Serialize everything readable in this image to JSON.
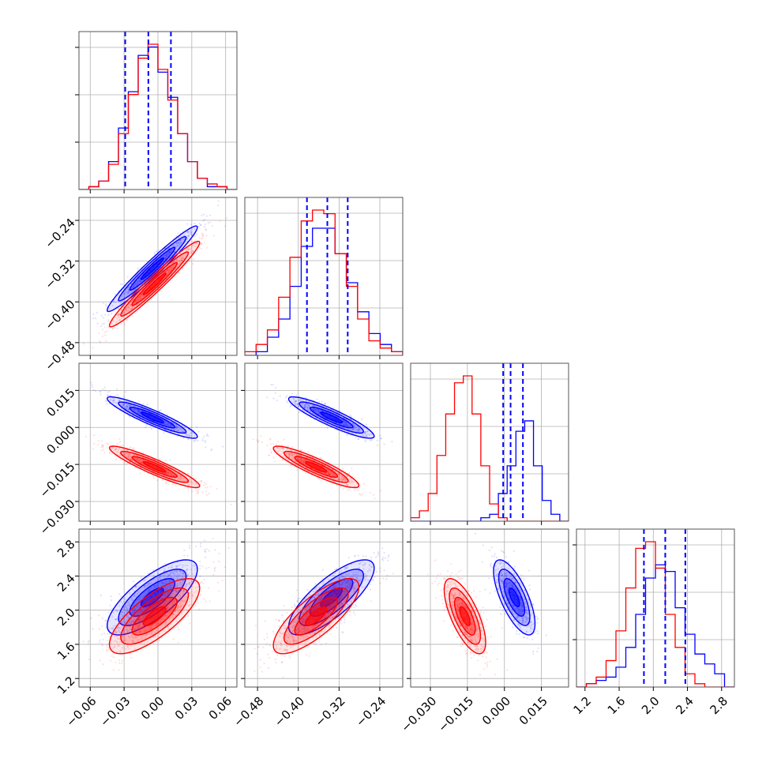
{
  "colors": {
    "model_a": "#0000ff",
    "model_b": "#ff0000"
  },
  "chart_data": {
    "type": "corner",
    "parameters": [
      {
        "index": 0,
        "range": [
          -0.07,
          0.07
        ],
        "ticks": [
          "−0.06",
          "−0.03",
          "0.00",
          "0.03",
          "0.06"
        ],
        "tick_values": [
          -0.06,
          -0.03,
          0.0,
          0.03,
          0.06
        ]
      },
      {
        "index": 1,
        "range": [
          -0.505,
          -0.195
        ],
        "ticks": [
          "−0.48",
          "−0.40",
          "−0.32",
          "−0.24"
        ],
        "tick_values": [
          -0.48,
          -0.4,
          -0.32,
          -0.24
        ]
      },
      {
        "index": 2,
        "range": [
          -0.038,
          0.026
        ],
        "ticks": [
          "−0.030",
          "−0.015",
          "0.000",
          "0.015"
        ],
        "tick_values": [
          -0.03,
          -0.015,
          0.0,
          0.015
        ]
      },
      {
        "index": 3,
        "range": [
          1.1,
          2.95
        ],
        "ticks": [
          "1.2",
          "1.6",
          "2.0",
          "2.4",
          "2.8"
        ],
        "tick_values": [
          1.2,
          1.6,
          2.0,
          2.4,
          2.8
        ]
      }
    ],
    "quantiles_blue": [
      [
        -0.029,
        -0.0085,
        0.0115
      ],
      [
        -0.383,
        -0.343,
        -0.303
      ],
      [
        -0.0005,
        0.0025,
        0.0075
      ],
      [
        1.89,
        2.14,
        2.375
      ]
    ],
    "series": [
      {
        "color": "blue",
        "mean": [
          -0.005,
          -0.335,
          0.004,
          2.15
        ],
        "std": [
          0.02,
          0.042,
          0.0042,
          0.22
        ],
        "corr": [
          [
            1.0,
            0.97,
            -0.92,
            0.75
          ],
          [
            0.97,
            1.0,
            -0.9,
            0.78
          ],
          [
            -0.92,
            -0.9,
            1.0,
            -0.7
          ],
          [
            0.75,
            0.78,
            -0.7,
            1.0
          ]
        ],
        "histograms": [
          [
            0,
            1,
            3,
            10,
            22,
            35,
            48,
            51,
            42,
            33,
            20,
            10,
            4,
            1,
            1,
            0
          ],
          [
            0,
            1,
            5,
            10,
            19,
            30,
            35,
            35,
            28,
            20,
            12,
            6,
            3,
            1
          ],
          [
            0,
            0,
            0,
            0,
            0,
            0,
            0,
            0,
            1,
            2,
            8,
            16,
            26,
            29,
            16,
            6,
            2,
            0
          ],
          [
            0,
            1,
            2,
            3,
            6,
            12,
            22,
            33,
            37,
            35,
            24,
            16,
            10,
            7,
            4,
            0
          ]
        ]
      },
      {
        "color": "red",
        "mean": [
          -0.003,
          -0.365,
          -0.016,
          1.93
        ],
        "std": [
          0.02,
          0.042,
          0.0042,
          0.22
        ],
        "corr": [
          [
            1.0,
            0.97,
            -0.92,
            0.75
          ],
          [
            0.97,
            1.0,
            -0.9,
            0.78
          ],
          [
            -0.92,
            -0.9,
            1.0,
            -0.7
          ],
          [
            0.75,
            0.78,
            -0.7,
            1.0
          ]
        ],
        "histograms": [
          [
            0,
            1,
            3,
            9,
            20,
            34,
            47,
            52,
            43,
            32,
            20,
            10,
            4,
            2,
            1,
            0
          ],
          [
            1,
            3,
            7,
            16,
            27,
            37,
            40,
            39,
            28,
            19,
            10,
            4,
            2,
            1
          ],
          [
            1,
            3,
            8,
            19,
            31,
            40,
            42,
            31,
            16,
            5,
            1,
            0,
            0,
            0,
            0,
            0,
            0,
            0
          ],
          [
            0,
            1,
            3,
            8,
            17,
            30,
            42,
            44,
            36,
            22,
            12,
            4,
            1,
            0,
            0,
            0
          ]
        ]
      }
    ]
  }
}
